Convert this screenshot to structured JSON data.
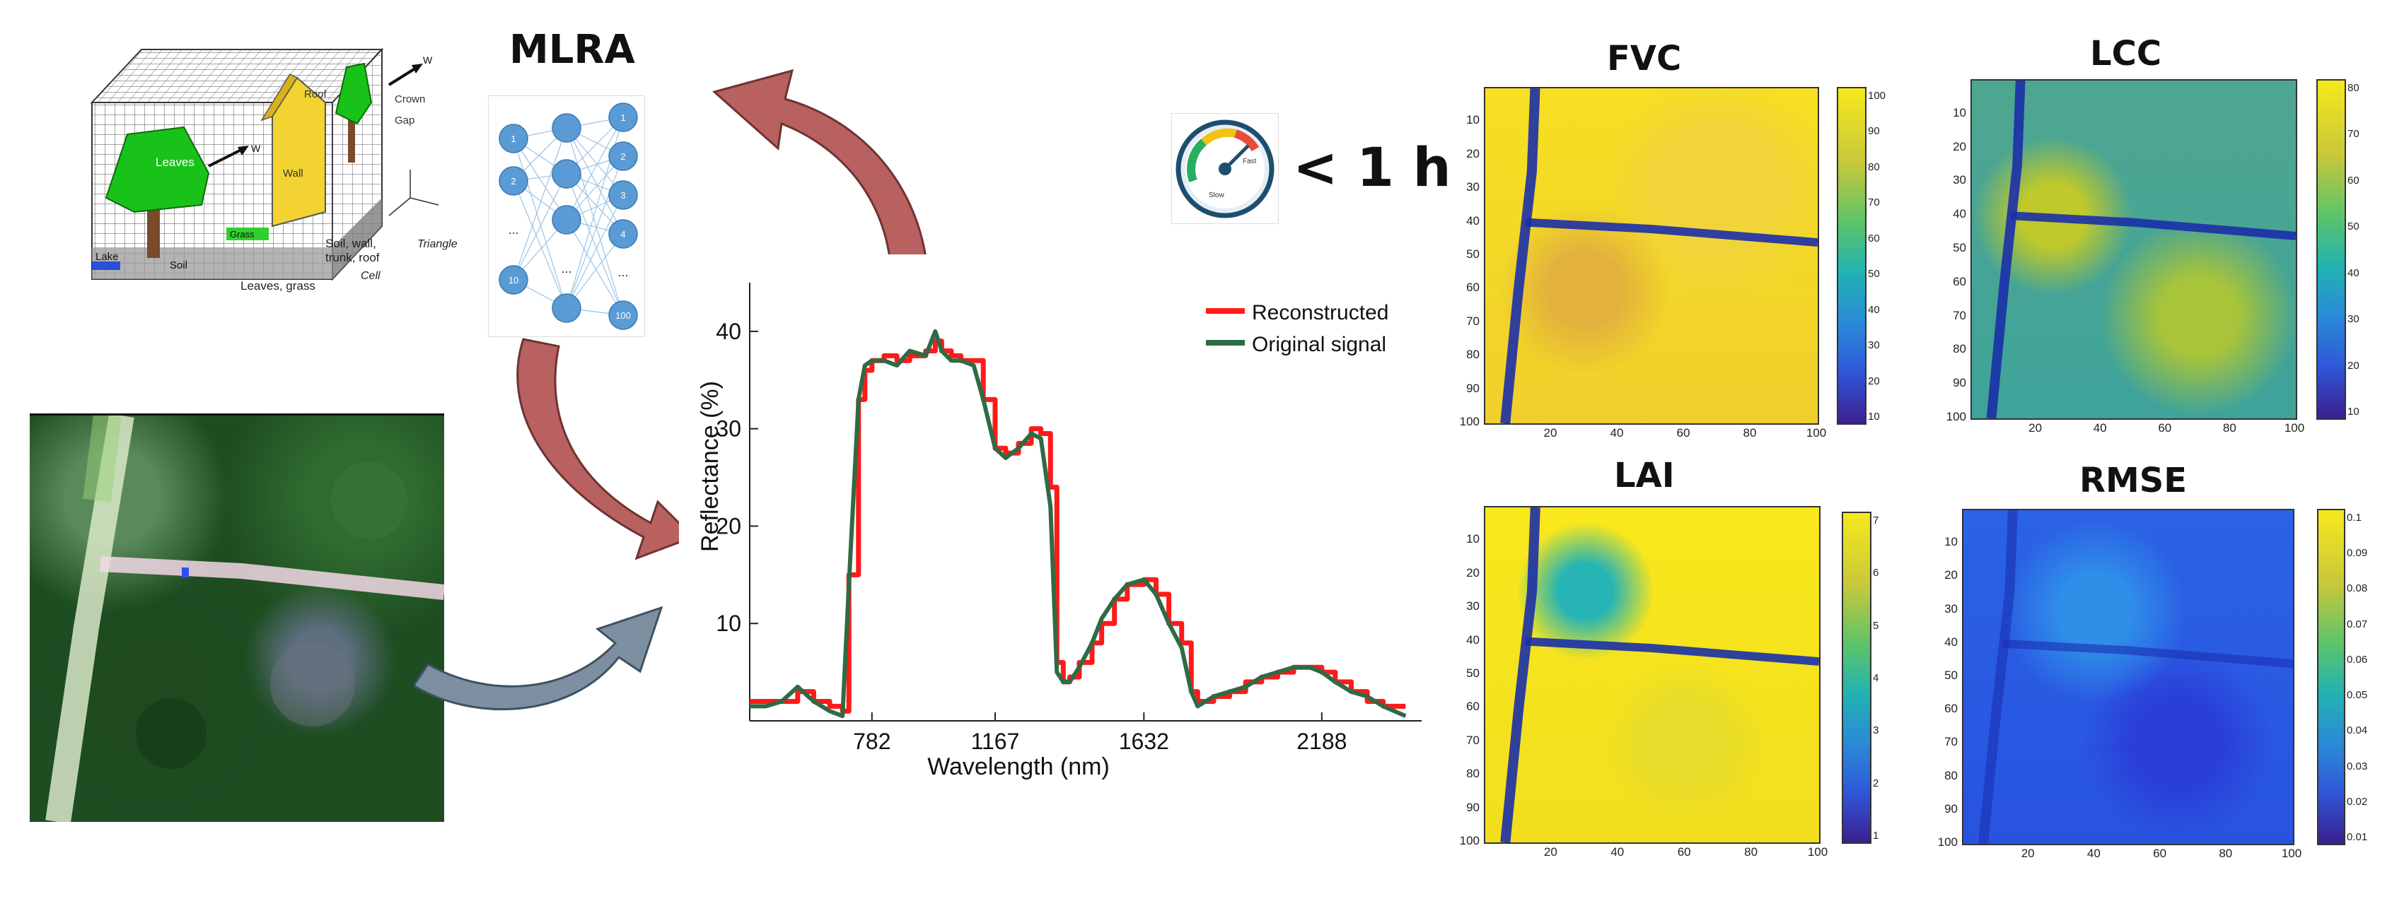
{
  "mlra_title": "MLRA",
  "speed_label": "< 1 h",
  "gauge": {
    "fast_label": "Fast",
    "slow_label": "Slow"
  },
  "dart_labels": {
    "roof": "Roof",
    "crown": "Crown",
    "gap": "Gap",
    "leaves": "Leaves",
    "wall": "Wall",
    "lake": "Lake",
    "soil": "Soil",
    "grass": "Grass",
    "w_in": "W",
    "w_wall": "W",
    "note1": "Soil, wall,",
    "note2": "trunk, roof",
    "note3": "Leaves, grass",
    "triangle": "Triangle",
    "cell": "Cell"
  },
  "nn": {
    "input": [
      "1",
      "2",
      "...",
      "10"
    ],
    "output": [
      "1",
      "2",
      "3",
      "4",
      "...",
      "100"
    ],
    "hidden_dots": "..."
  },
  "chart_data": {
    "type": "line",
    "xlabel": "Wavelength (nm)",
    "ylabel": "Reflectance (%)",
    "x_ticks": [
      782,
      1167,
      1632,
      2188
    ],
    "y_ticks": [
      10,
      20,
      30,
      40
    ],
    "xlim": [
      400,
      2500
    ],
    "ylim": [
      0,
      45
    ],
    "legend_position": "top-right",
    "series": [
      {
        "name": "Reconstructed",
        "color": "#ff1a1a",
        "x": [
          400,
          450,
          500,
          550,
          600,
          650,
          690,
          710,
          740,
          760,
          782,
          820,
          860,
          900,
          950,
          980,
          1000,
          1030,
          1060,
          1100,
          1130,
          1167,
          1200,
          1240,
          1280,
          1310,
          1340,
          1360,
          1380,
          1400,
          1430,
          1470,
          1500,
          1540,
          1580,
          1632,
          1670,
          1710,
          1750,
          1780,
          1800,
          1850,
          1900,
          1950,
          2000,
          2050,
          2100,
          2150,
          2188,
          2230,
          2280,
          2330,
          2380,
          2450
        ],
        "y": [
          2,
          2,
          2,
          3,
          2,
          1.5,
          1,
          15,
          33,
          36,
          37,
          37.5,
          37,
          37.5,
          38,
          39,
          38,
          37.5,
          37,
          37,
          33,
          28,
          27.5,
          28.5,
          30,
          29.5,
          24,
          6,
          4,
          4.5,
          6,
          8,
          10,
          12.5,
          14,
          14.5,
          13,
          10,
          8,
          3,
          2,
          2.5,
          3,
          4,
          4.5,
          5,
          5.5,
          5.5,
          5,
          4,
          3,
          2,
          1.5,
          1.5
        ]
      },
      {
        "name": "Original signal",
        "color": "#2e6b45",
        "x": [
          400,
          450,
          500,
          550,
          600,
          650,
          690,
          710,
          740,
          760,
          782,
          820,
          860,
          900,
          950,
          980,
          1000,
          1030,
          1060,
          1100,
          1130,
          1167,
          1200,
          1240,
          1280,
          1310,
          1340,
          1360,
          1380,
          1400,
          1430,
          1470,
          1500,
          1540,
          1580,
          1632,
          1670,
          1710,
          1750,
          1780,
          1800,
          1850,
          1900,
          1950,
          2000,
          2050,
          2100,
          2150,
          2188,
          2230,
          2280,
          2330,
          2380,
          2450
        ],
        "y": [
          1.5,
          1.5,
          2,
          3.5,
          2,
          1,
          0.5,
          14,
          33,
          36.5,
          37,
          37,
          36.5,
          38,
          37.5,
          40,
          38,
          37,
          37,
          36.5,
          33,
          28,
          27,
          28,
          29.5,
          29,
          22,
          5,
          4,
          4,
          5.5,
          8,
          10.5,
          12.5,
          14,
          14.5,
          13,
          10,
          7.5,
          3,
          1.5,
          2.5,
          3,
          3.5,
          4.5,
          5,
          5.5,
          5.5,
          5,
          4,
          3,
          2.5,
          1.5,
          0.5
        ]
      }
    ]
  },
  "maps": [
    {
      "title": "FVC",
      "cbar_ticks": [
        "100",
        "90",
        "80",
        "70",
        "60",
        "50",
        "40",
        "30",
        "20",
        "10"
      ]
    },
    {
      "title": "LCC",
      "cbar_ticks": [
        "80",
        "70",
        "60",
        "50",
        "40",
        "30",
        "20",
        "10"
      ]
    },
    {
      "title": "LAI",
      "cbar_ticks": [
        "7",
        "6",
        "5",
        "4",
        "3",
        "2",
        "1"
      ]
    },
    {
      "title": "RMSE",
      "cbar_ticks": [
        "0.1",
        "0.09",
        "0.08",
        "0.07",
        "0.06",
        "0.05",
        "0.04",
        "0.03",
        "0.02",
        "0.01"
      ]
    }
  ],
  "map_axis": {
    "y_ticks": [
      "10",
      "20",
      "30",
      "40",
      "50",
      "60",
      "70",
      "80",
      "90",
      "100"
    ],
    "x_ticks": [
      "20",
      "40",
      "60",
      "80",
      "100"
    ]
  }
}
